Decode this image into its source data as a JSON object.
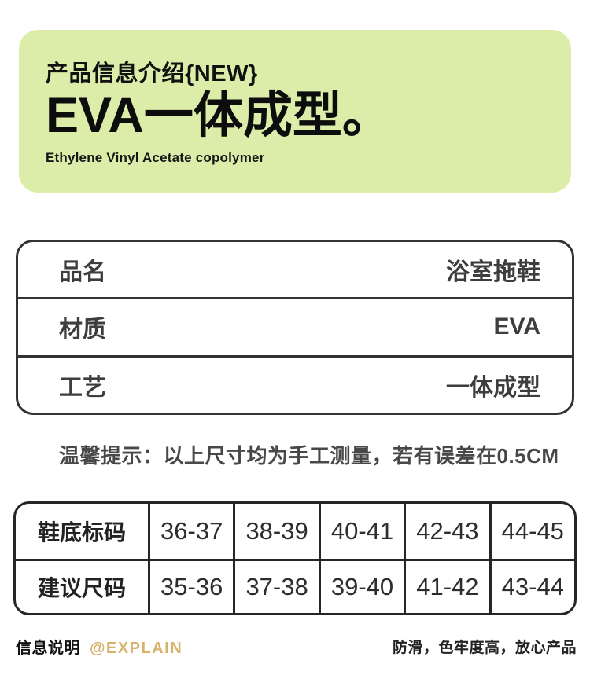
{
  "hero": {
    "eyebrow": "产品信息介绍{NEW}",
    "title": "EVA一体成型。",
    "subtitle": "Ethylene Vinyl Acetate copolymer",
    "bg_color": "#dcedaa"
  },
  "spec_table": {
    "rows": [
      {
        "label": "品名",
        "value": "浴室拖鞋"
      },
      {
        "label": "材质",
        "value": "EVA"
      },
      {
        "label": "工艺",
        "value": "一体成型"
      }
    ]
  },
  "notice": "温馨提示：以上尺寸均为手工测量，若有误差在0.5CM",
  "size_table": {
    "rows": [
      {
        "header": "鞋底标码",
        "values": [
          "36-37",
          "38-39",
          "40-41",
          "42-43",
          "44-45"
        ]
      },
      {
        "header": "建议尺码",
        "values": [
          "35-36",
          "37-38",
          "39-40",
          "41-42",
          "43-44"
        ]
      }
    ]
  },
  "footer": {
    "left_label": "信息说明",
    "left_tag": "@EXPLAIN",
    "tag_color": "#d7b26c",
    "right_text": "防滑，色牢度高，放心产品"
  }
}
